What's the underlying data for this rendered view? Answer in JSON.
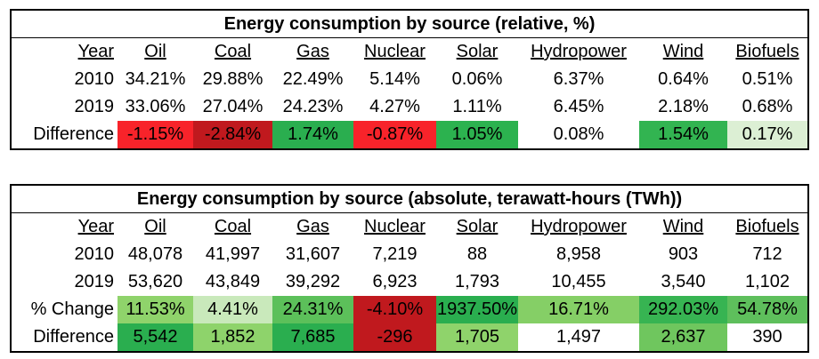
{
  "relative_table": {
    "title": "Energy consumption by source (relative, %)",
    "headers": [
      "Year",
      "Oil",
      "Coal",
      "Gas",
      "Nuclear",
      "Solar",
      "Hydropower",
      "Wind",
      "Biofuels"
    ],
    "rows": [
      {
        "label": "2010",
        "cells": [
          "34.21%",
          "29.88%",
          "22.49%",
          "5.14%",
          "0.06%",
          "6.37%",
          "0.64%",
          "0.51%"
        ],
        "colors": [
          "",
          "",
          "",
          "",
          "",
          "",
          "",
          ""
        ]
      },
      {
        "label": "2019",
        "cells": [
          "33.06%",
          "27.04%",
          "24.23%",
          "4.27%",
          "1.11%",
          "6.45%",
          "2.18%",
          "0.68%"
        ],
        "colors": [
          "",
          "",
          "",
          "",
          "",
          "",
          "",
          ""
        ]
      },
      {
        "label": "Difference",
        "cells": [
          "-1.15%",
          "-2.84%",
          "1.74%",
          "-0.87%",
          "1.05%",
          "0.08%",
          "1.54%",
          "0.17%"
        ],
        "colors": [
          "#f8232a",
          "#c0191e",
          "#2aae4f",
          "#f8232a",
          "#2cb24f",
          "#ffffff",
          "#32b451",
          "#dcefd4"
        ]
      }
    ]
  },
  "absolute_table": {
    "title": "Energy consumption by source (absolute, terawatt-hours (TWh))",
    "headers": [
      "Year",
      "Oil",
      "Coal",
      "Gas",
      "Nuclear",
      "Solar",
      "Hydropower",
      "Wind",
      "Biofuels"
    ],
    "rows": [
      {
        "label": "2010",
        "cells": [
          "48,078",
          "41,997",
          "31,607",
          "7,219",
          "88",
          "8,958",
          "903",
          "712"
        ],
        "colors": [
          "",
          "",
          "",
          "",
          "",
          "",
          "",
          ""
        ]
      },
      {
        "label": "2019",
        "cells": [
          "53,620",
          "43,849",
          "39,292",
          "6,923",
          "1,793",
          "10,455",
          "3,540",
          "1,102"
        ],
        "colors": [
          "",
          "",
          "",
          "",
          "",
          "",
          "",
          ""
        ]
      },
      {
        "label": "% Change",
        "cells": [
          "11.53%",
          "4.41%",
          "24.31%",
          "-4.10%",
          "1937.50%",
          "16.71%",
          "292.03%",
          "54.78%"
        ],
        "colors": [
          "#8fd36b",
          "#c9e9bb",
          "#5cc05a",
          "#c0191e",
          "#2aae4f",
          "#85cf66",
          "#37b452",
          "#5ebf5c"
        ]
      },
      {
        "label": "Difference",
        "cells": [
          "5,542",
          "1,852",
          "7,685",
          "-296",
          "1,705",
          "1,497",
          "2,637",
          "390"
        ],
        "colors": [
          "#2aae4f",
          "#8ed36b",
          "#2aae4f",
          "#c0191e",
          "#8fd36b",
          "#ffffff",
          "#6fc65e",
          "#ffffff"
        ]
      }
    ]
  }
}
